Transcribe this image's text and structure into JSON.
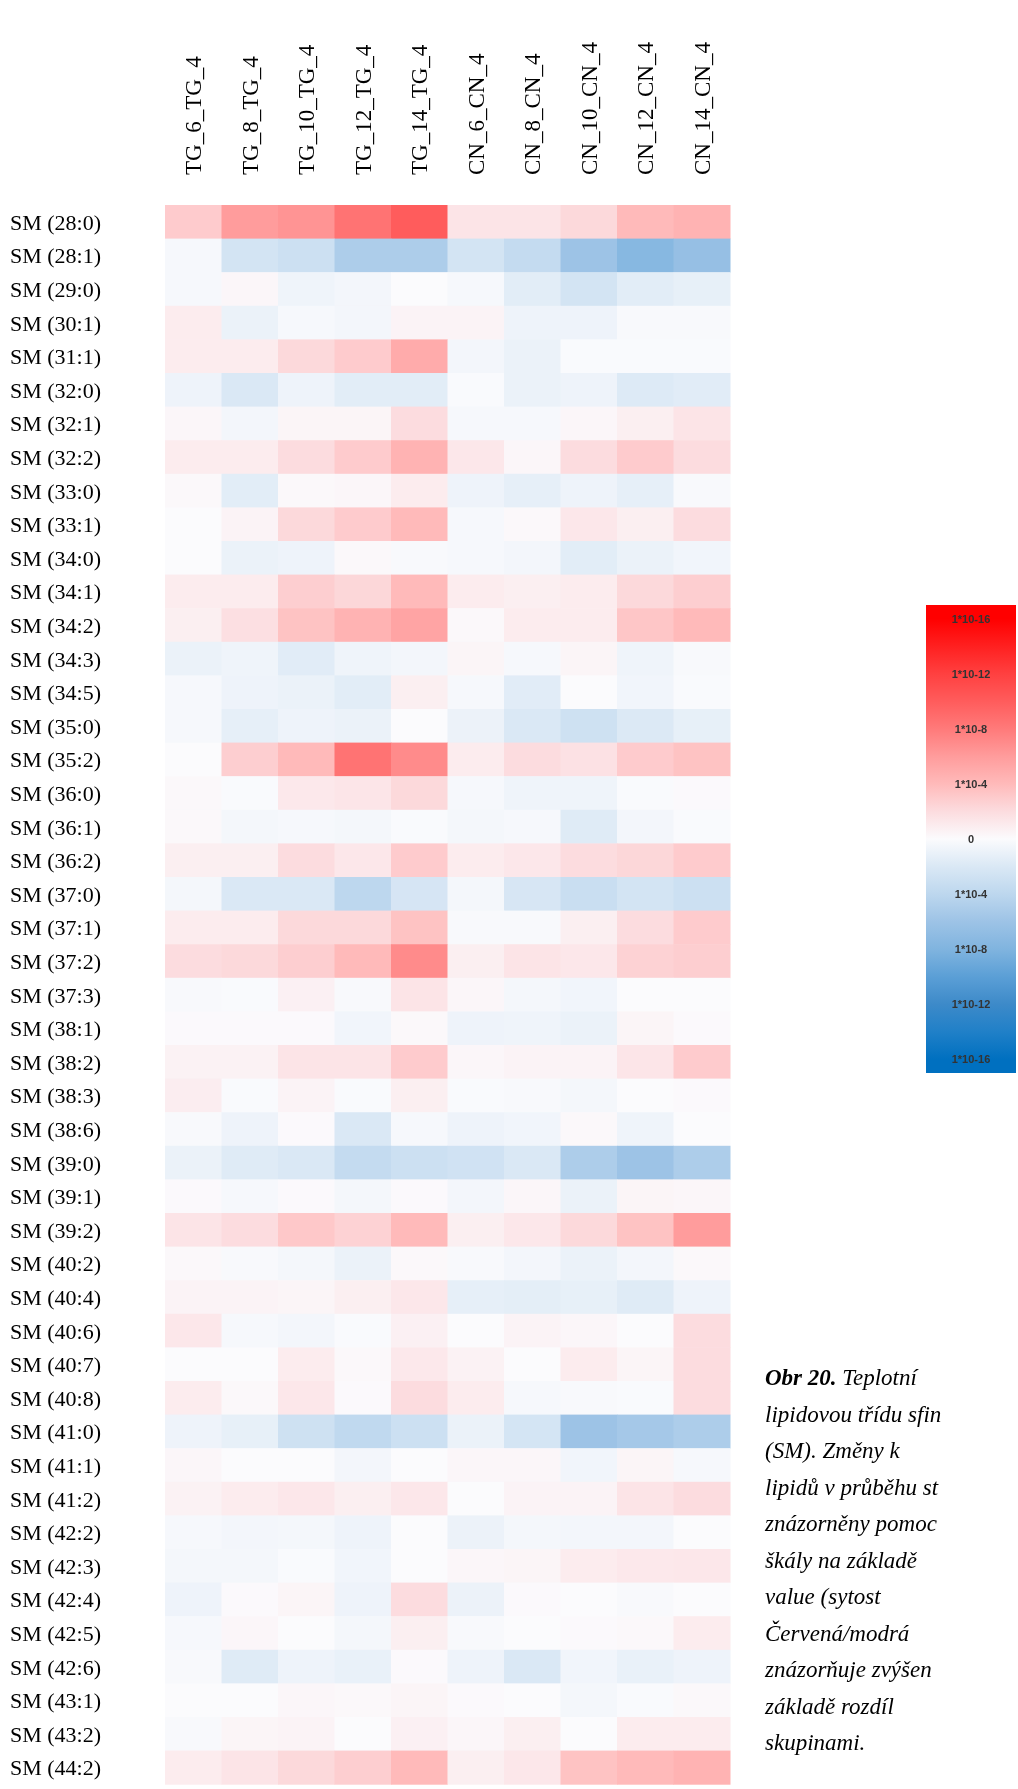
{
  "chart_data": {
    "type": "heatmap",
    "categories": [
      "TG_6_TG_4",
      "TG_8_TG_4",
      "TG_10_TG_4",
      "TG_12_TG_4",
      "TG_14_TG_4",
      "CN_6_CN_4",
      "CN_8_CN_4",
      "CN_10_CN_4",
      "CN_12_CN_4",
      "CN_14_CN_4"
    ],
    "y_categories": [
      "SM (28:0)",
      "SM (28:1)",
      "SM (29:0)",
      "SM (30:1)",
      "SM (31:1)",
      "SM (32:0)",
      "SM (32:1)",
      "SM (32:2)",
      "SM (33:0)",
      "SM (33:1)",
      "SM (34:0)",
      "SM (34:1)",
      "SM (34:2)",
      "SM (34:3)",
      "SM (34:5)",
      "SM (35:0)",
      "SM (35:2)",
      "SM (36:0)",
      "SM (36:1)",
      "SM (36:2)",
      "SM (37:0)",
      "SM (37:1)",
      "SM (37:2)",
      "SM (37:3)",
      "SM (38:1)",
      "SM (38:2)",
      "SM (38:3)",
      "SM (38:6)",
      "SM (39:0)",
      "SM (39:1)",
      "SM (39:2)",
      "SM (40:2)",
      "SM (40:4)",
      "SM (40:6)",
      "SM (40:7)",
      "SM (40:8)",
      "SM (41:0)",
      "SM (41:1)",
      "SM (41:2)",
      "SM (42:2)",
      "SM (42:3)",
      "SM (42:4)",
      "SM (42:5)",
      "SM (42:6)",
      "SM (43:1)",
      "SM (43:2)",
      "SM (44:2)"
    ],
    "cells": [
      [
        3,
        6,
        6.5,
        8.5,
        10,
        1.5,
        1.5,
        2.2,
        4,
        4.5
      ],
      [
        -0.3,
        -2.5,
        -3,
        -5,
        -5,
        -2.5,
        -3.5,
        -6,
        -7.5,
        -6.5
      ],
      [
        -0.3,
        0.3,
        -0.7,
        -0.5,
        0,
        -0.3,
        -1.5,
        -2.5,
        -1.5,
        -1.2
      ],
      [
        1,
        -1,
        -0.3,
        -0.5,
        0.5,
        0.5,
        -0.8,
        -0.8,
        -0.2,
        -0.2
      ],
      [
        1,
        1,
        2.2,
        3,
        5,
        -0.5,
        -1,
        -0.1,
        -0.1,
        -0.1
      ],
      [
        -0.8,
        -2,
        -0.8,
        -1.5,
        -1.5,
        -0.1,
        -1,
        -0.8,
        -1.8,
        -1.6
      ],
      [
        0.3,
        -0.5,
        0.4,
        0.4,
        2,
        -0.3,
        -0.3,
        0.3,
        0.8,
        1.5
      ],
      [
        1,
        1,
        2,
        3,
        4.5,
        1.3,
        0.3,
        2,
        3,
        2
      ],
      [
        0.2,
        -1.5,
        0.2,
        0.3,
        1,
        -0.8,
        -1.3,
        -0.8,
        -1.3,
        -0.2
      ],
      [
        0,
        0.5,
        2.2,
        3,
        4,
        -0.3,
        0.2,
        1.3,
        0.8,
        2
      ],
      [
        0,
        -1,
        -0.8,
        0.2,
        -0.2,
        -0.3,
        -0.5,
        -1.5,
        -1,
        -0.6
      ],
      [
        1,
        1,
        2.8,
        2.3,
        4,
        1,
        0.8,
        1,
        2.2,
        2.8
      ],
      [
        0.8,
        1.8,
        3.5,
        4.5,
        5.5,
        0.2,
        1,
        1,
        3.3,
        4
      ],
      [
        -1,
        -0.7,
        -1.6,
        -0.7,
        -0.5,
        0.4,
        -0.3,
        0.4,
        -0.7,
        -0.2
      ],
      [
        -0.3,
        -0.8,
        -1,
        -1.5,
        0.8,
        -0.3,
        -1.6,
        0,
        -0.6,
        -0.1
      ],
      [
        -0.3,
        -1.3,
        -0.8,
        -1,
        0,
        -0.9,
        -2,
        -2.8,
        -1.9,
        -1.2
      ],
      [
        0,
        2.8,
        4,
        8.5,
        7,
        1,
        2,
        1.7,
        3,
        3.5
      ],
      [
        0.2,
        -0.1,
        1.2,
        1.4,
        2.2,
        -0.3,
        -0.7,
        -0.7,
        -0.1,
        0.1
      ],
      [
        0.2,
        -0.4,
        -0.3,
        -0.4,
        -0.1,
        -0.4,
        -0.3,
        -1.7,
        -0.5,
        -0.1
      ],
      [
        0.8,
        0.8,
        2,
        1.3,
        3,
        1,
        1.3,
        2,
        2.3,
        3
      ],
      [
        -0.4,
        -2,
        -2,
        -4,
        -2.3,
        -0.4,
        -2.2,
        -3.2,
        -2.5,
        -3
      ],
      [
        1,
        1,
        2.2,
        2.2,
        3.5,
        -0.2,
        -0.2,
        0.8,
        2,
        3
      ],
      [
        2,
        2.2,
        2.8,
        4,
        7,
        0.8,
        1.5,
        1.3,
        2.6,
        2.8
      ],
      [
        -0.2,
        -0.1,
        0.7,
        -0.2,
        1.5,
        0.3,
        -0.4,
        -0.6,
        0,
        0
      ],
      [
        0.1,
        0.1,
        0.1,
        -0.6,
        0.2,
        -0.8,
        -0.7,
        -1,
        0.4,
        0.1
      ],
      [
        0.6,
        0.6,
        1.5,
        1.5,
        3,
        0.3,
        0.5,
        0.5,
        1.4,
        3
      ],
      [
        0.9,
        -0.1,
        0.5,
        -0.1,
        0.8,
        -0.1,
        -0.2,
        -0.4,
        0,
        0.1
      ],
      [
        -0.2,
        -0.8,
        0.1,
        -2,
        -0.3,
        -0.8,
        -0.6,
        0.2,
        -0.7,
        0
      ],
      [
        -1,
        -1.7,
        -2,
        -3.5,
        -3,
        -2.7,
        -2,
        -5,
        -6,
        -5
      ],
      [
        0.1,
        -0.3,
        0.1,
        -0.4,
        0.1,
        -0.5,
        0.3,
        -1,
        0.4,
        0.3
      ],
      [
        1.5,
        2,
        3.2,
        2.6,
        4,
        0.8,
        1.3,
        2.2,
        3.5,
        6
      ],
      [
        0.2,
        -0.2,
        -0.4,
        -1,
        0.2,
        -0.2,
        -0.5,
        -1,
        -0.5,
        0.2
      ],
      [
        0.5,
        0.5,
        0.4,
        0.8,
        1.3,
        -1.3,
        -1.4,
        -1.2,
        -1.7,
        -0.8
      ],
      [
        1.3,
        -0.3,
        -0.5,
        -0.1,
        0.7,
        0,
        0.5,
        0.3,
        0,
        2
      ],
      [
        0,
        0,
        1,
        0.2,
        1.2,
        0.6,
        0,
        1,
        0.4,
        2
      ],
      [
        1,
        0.2,
        1.3,
        0.1,
        2,
        1,
        -0.3,
        -0.2,
        -0.1,
        2
      ],
      [
        -0.8,
        -1.2,
        -2.8,
        -3.8,
        -3,
        -1,
        -2.4,
        -6,
        -5.5,
        -5
      ],
      [
        0.3,
        0,
        0,
        -0.5,
        0,
        0.3,
        0.3,
        -0.6,
        0.4,
        -0.3
      ],
      [
        0.6,
        1,
        1.3,
        0.8,
        1.3,
        0,
        0.5,
        0.5,
        1.5,
        2
      ],
      [
        -0.3,
        -0.5,
        -0.4,
        -0.8,
        0,
        -0.9,
        -0.4,
        -0.5,
        -0.5,
        0
      ],
      [
        -0.4,
        -0.4,
        -0.1,
        -0.6,
        0,
        0.3,
        0.4,
        1,
        1.2,
        1.3
      ],
      [
        -0.8,
        0.1,
        0.4,
        -0.8,
        2,
        -0.9,
        0.1,
        0,
        -0.2,
        0
      ],
      [
        -0.3,
        0.3,
        0,
        -0.4,
        0.8,
        -0.2,
        0,
        0.1,
        0.2,
        1
      ],
      [
        -0.2,
        -1.7,
        -0.8,
        -1.1,
        0.1,
        -0.8,
        -2,
        -0.6,
        -1.1,
        -0.8
      ],
      [
        0,
        0,
        0.3,
        0.2,
        0.4,
        0.1,
        0,
        -0.4,
        -0.1,
        0.2
      ],
      [
        -0.2,
        0.4,
        0.5,
        0,
        0.7,
        0.3,
        0.8,
        0,
        1,
        1
      ],
      [
        1,
        1.5,
        2.2,
        2.8,
        4,
        0.8,
        1.3,
        3.5,
        4,
        4.5
      ]
    ],
    "clim": [
      -17,
      17
    ],
    "cticks": [
      {
        "value": 16,
        "label": "1*10-16"
      },
      {
        "value": 12,
        "label": "1*10-12"
      },
      {
        "value": 8,
        "label": "1*10-8"
      },
      {
        "value": 4,
        "label": "1*10-4"
      },
      0,
      {
        "value": -4,
        "label": "1*10-4"
      },
      {
        "value": -8,
        "label": "1*10-8"
      },
      {
        "value": -12,
        "label": "1*10-12"
      },
      {
        "value": -16,
        "label": "1*10-16"
      }
    ],
    "annotations": [
      "Obr 20. Teplotní",
      "lipidovou třídu sfin",
      "(SM). Změny k",
      "lipidů v průběhu st",
      "znázorněny pomoc",
      "škály na základě",
      "value (sytost",
      "Červená/modrá",
      "znázorňuje zvýšen",
      "základě rozdíl",
      "skupinami."
    ]
  }
}
